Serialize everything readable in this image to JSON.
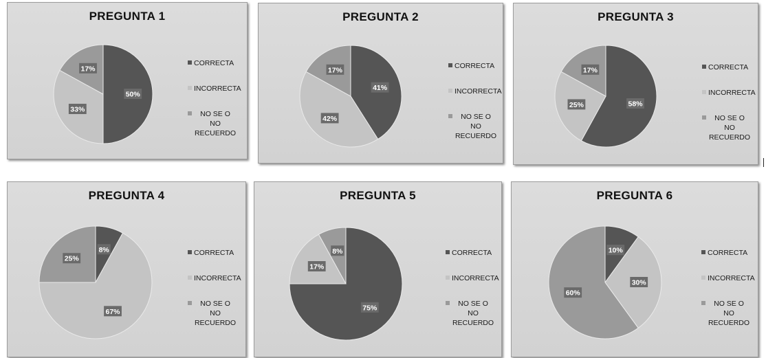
{
  "colors": {
    "correcta": "#555555",
    "incorrecta": "#c4c4c4",
    "nose": "#9a9a9a",
    "label_bg": "#6a6a6a",
    "label_text": "#ffffff"
  },
  "legend_labels": [
    "CORRECTA",
    "INCORRECTA",
    "NO SE O NO RECUERDO"
  ],
  "chart_data": [
    {
      "type": "pie",
      "title": "PREGUNTA 1",
      "categories": [
        "CORRECTA",
        "INCORRECTA",
        "NO SE O NO RECUERDO"
      ],
      "values": [
        50,
        33,
        17
      ],
      "labels": [
        "50%",
        "33%",
        "17%"
      ],
      "legend": "right"
    },
    {
      "type": "pie",
      "title": "PREGUNTA 2",
      "categories": [
        "CORRECTA",
        "INCORRECTA",
        "NO SE O NO RECUERDO"
      ],
      "values": [
        41,
        42,
        17
      ],
      "labels": [
        "41%",
        "42%",
        "17%"
      ],
      "legend": "right"
    },
    {
      "type": "pie",
      "title": "PREGUNTA 3",
      "categories": [
        "CORRECTA",
        "INCORRECTA",
        "NO SE O NO RECUERDO"
      ],
      "values": [
        58,
        25,
        17
      ],
      "labels": [
        "58%",
        "25%",
        "17%"
      ],
      "legend": "right"
    },
    {
      "type": "pie",
      "title": "PREGUNTA 4",
      "categories": [
        "CORRECTA",
        "INCORRECTA",
        "NO SE O NO RECUERDO"
      ],
      "values": [
        8,
        67,
        25
      ],
      "labels": [
        "8%",
        "67%",
        "25%"
      ],
      "legend": "right"
    },
    {
      "type": "pie",
      "title": "PREGUNTA 5",
      "categories": [
        "CORRECTA",
        "INCORRECTA",
        "NO SE O NO RECUERDO"
      ],
      "values": [
        75,
        17,
        8
      ],
      "labels": [
        "75%",
        "17%",
        "8%"
      ],
      "legend": "right"
    },
    {
      "type": "pie",
      "title": "PREGUNTA 6",
      "categories": [
        "CORRECTA",
        "INCORRECTA",
        "NO SE O NO RECUERDO"
      ],
      "values": [
        10,
        30,
        60
      ],
      "labels": [
        "10%",
        "30%",
        "60%"
      ],
      "legend": "right"
    }
  ]
}
